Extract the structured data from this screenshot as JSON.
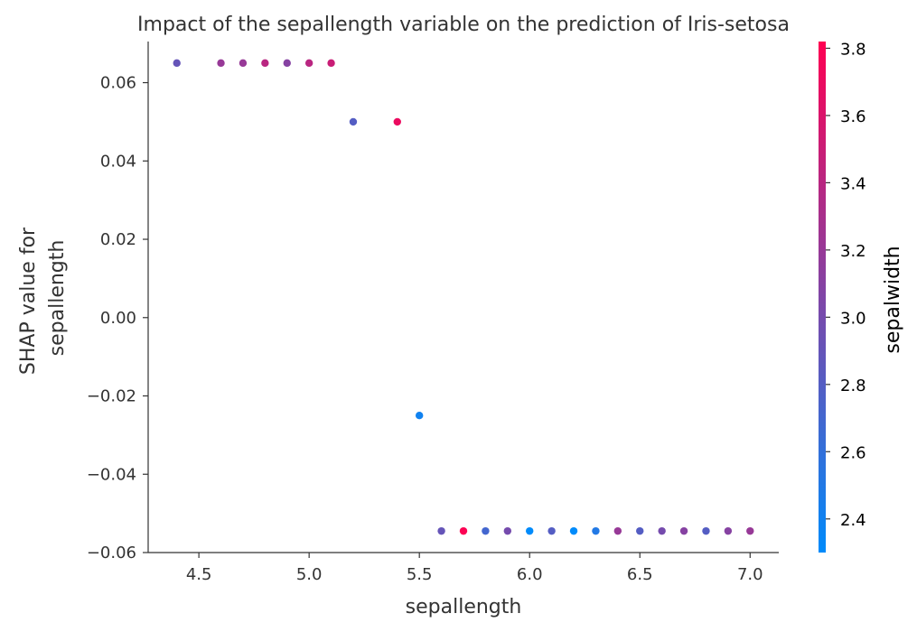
{
  "chart_data": {
    "type": "scatter",
    "title": "Impact of the sepallength variable on the prediction of Iris-setosa",
    "xlabel": "sepallength",
    "ylabel_lines": [
      "SHAP value for",
      "sepallength"
    ],
    "xlim": [
      4.27,
      7.13
    ],
    "ylim": [
      -0.06,
      0.0705
    ],
    "xticks": [
      4.5,
      5.0,
      5.5,
      6.0,
      6.5,
      7.0
    ],
    "xtick_labels": [
      "4.5",
      "5.0",
      "5.5",
      "6.0",
      "6.5",
      "7.0"
    ],
    "yticks": [
      0.06,
      0.04,
      0.02,
      0.0,
      -0.02,
      -0.04,
      -0.06
    ],
    "ytick_labels": [
      "0.06",
      "0.04",
      "0.02",
      "0.00",
      "−0.02",
      "−0.04",
      "−0.06"
    ],
    "grid": false,
    "colorbar": {
      "label": "sepalwidth",
      "range": [
        2.3,
        3.82
      ],
      "ticks": [
        2.4,
        2.6,
        2.8,
        3.0,
        3.2,
        3.4,
        3.6,
        3.8
      ],
      "tick_labels": [
        "2.4",
        "2.6",
        "2.8",
        "3.0",
        "3.2",
        "3.4",
        "3.6",
        "3.8"
      ],
      "colormap": [
        "#008bfb",
        "#ff0052"
      ]
    },
    "points": [
      {
        "x": 4.4,
        "y": 0.065,
        "c": 2.9
      },
      {
        "x": 4.6,
        "y": 0.065,
        "c": 3.2
      },
      {
        "x": 4.7,
        "y": 0.065,
        "c": 3.2
      },
      {
        "x": 4.8,
        "y": 0.065,
        "c": 3.4
      },
      {
        "x": 4.9,
        "y": 0.065,
        "c": 3.1
      },
      {
        "x": 5.0,
        "y": 0.065,
        "c": 3.4
      },
      {
        "x": 5.1,
        "y": 0.065,
        "c": 3.5
      },
      {
        "x": 5.2,
        "y": 0.05,
        "c": 2.8
      },
      {
        "x": 5.4,
        "y": 0.05,
        "c": 3.7
      },
      {
        "x": 5.5,
        "y": -0.025,
        "c": 2.4
      },
      {
        "x": 5.6,
        "y": -0.0545,
        "c": 2.9
      },
      {
        "x": 5.7,
        "y": -0.0545,
        "c": 3.8
      },
      {
        "x": 5.8,
        "y": -0.0545,
        "c": 2.7
      },
      {
        "x": 5.9,
        "y": -0.0545,
        "c": 3.0
      },
      {
        "x": 6.0,
        "y": -0.0545,
        "c": 2.2
      },
      {
        "x": 6.1,
        "y": -0.0545,
        "c": 2.8
      },
      {
        "x": 6.2,
        "y": -0.0545,
        "c": 2.2
      },
      {
        "x": 6.3,
        "y": -0.0545,
        "c": 2.5
      },
      {
        "x": 6.4,
        "y": -0.0545,
        "c": 3.2
      },
      {
        "x": 6.5,
        "y": -0.0545,
        "c": 2.8
      },
      {
        "x": 6.6,
        "y": -0.0545,
        "c": 3.0
      },
      {
        "x": 6.7,
        "y": -0.0545,
        "c": 3.1
      },
      {
        "x": 6.8,
        "y": -0.0545,
        "c": 2.8
      },
      {
        "x": 6.9,
        "y": -0.0545,
        "c": 3.1
      },
      {
        "x": 7.0,
        "y": -0.0545,
        "c": 3.2
      }
    ]
  }
}
